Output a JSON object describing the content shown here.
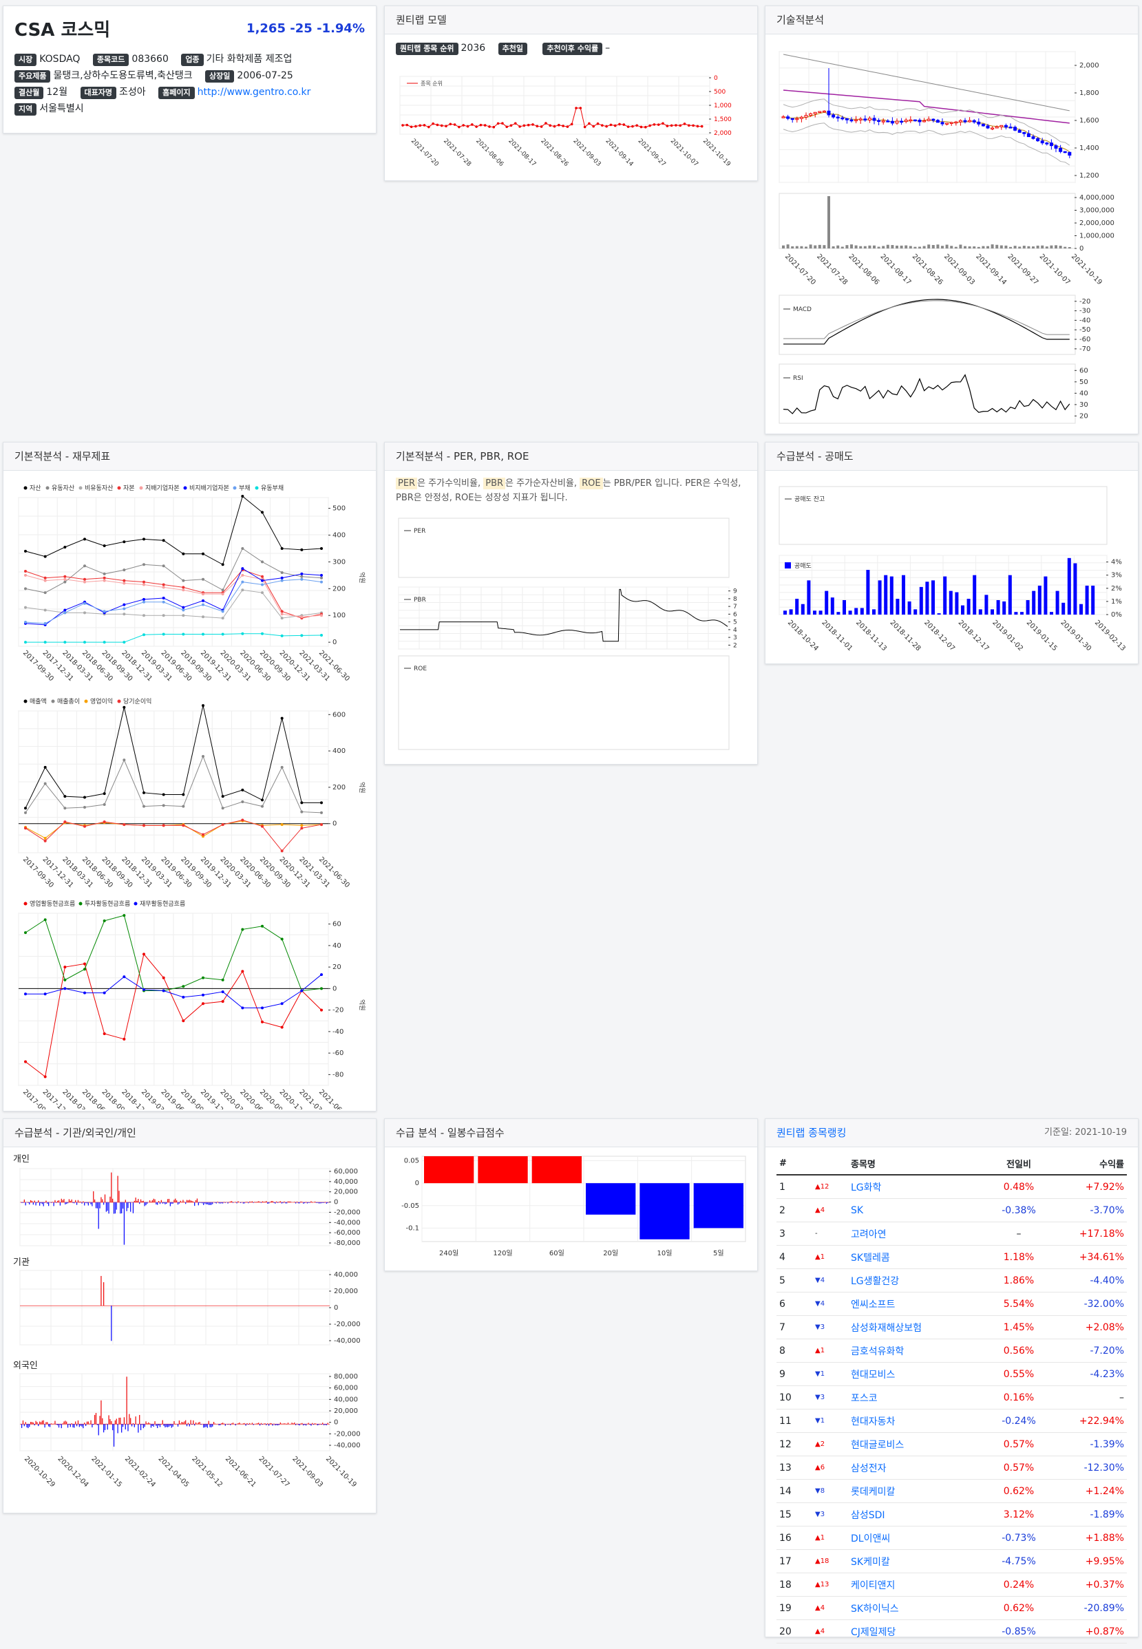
{
  "stock": {
    "name": "CSA 코스믹",
    "price": "1,265",
    "change": "-25",
    "change_pct": "-1.94%",
    "market_label": "시장",
    "market": "KOSDAQ",
    "code_label": "종목코드",
    "code": "083660",
    "industry_label": "업종",
    "industry": "기타 화학제품 제조업",
    "products_label": "주요제품",
    "products": "물탱크,상하수도용도류벽,축산탱크",
    "listing_label": "상장일",
    "listing": "2006-07-25",
    "settle_label": "결산월",
    "settle": "12월",
    "ceo_label": "대표자명",
    "ceo": "조성아",
    "homepage_label": "홈페이지",
    "homepage": "http://www.gentro.co.kr",
    "region_label": "지역",
    "region": "서울특별시"
  },
  "quant": {
    "title": "퀀티랩 모델",
    "rank_label": "퀀티랩 종목 순위",
    "rank": "2036",
    "rec_date_label": "추천일",
    "rec_date": "",
    "rec_return_label": "추천이후 수익률",
    "rec_return": "–",
    "legend": "종목 순위",
    "y_ticks": [
      "0",
      "500",
      "1,000",
      "1,500",
      "2,000"
    ],
    "x_ticks": [
      "2021-07-20",
      "2021-07-28",
      "2021-08-06",
      "2021-08-17",
      "2021-08-26",
      "2021-09-03",
      "2021-09-14",
      "2021-09-27",
      "2021-10-07",
      "2021-10-19"
    ]
  },
  "tech": {
    "title": "기술적분석",
    "price_ticks": [
      "2,000",
      "1,800",
      "1,600",
      "1,400",
      "1,200"
    ],
    "vol_ticks": [
      "4,000,000",
      "3,000,000",
      "2,000,000",
      "1,000,000",
      "0"
    ],
    "x_ticks": [
      "2021-07-20",
      "2021-07-28",
      "2021-08-06",
      "2021-08-17",
      "2021-08-26",
      "2021-09-03",
      "2021-09-14",
      "2021-09-27",
      "2021-10-07",
      "2021-10-19"
    ],
    "macd_label": "MACD",
    "macd_ticks": [
      "-20",
      "-30",
      "-40",
      "-50",
      "-60",
      "-70"
    ],
    "rsi_label": "RSI",
    "rsi_ticks": [
      "60",
      "50",
      "40",
      "30",
      "20"
    ]
  },
  "fin": {
    "title": "기본적분석 - 재무제표",
    "unit": "억원",
    "x_ticks": [
      "2017-09-30",
      "2017-12-31",
      "2018-03-31",
      "2018-06-30",
      "2018-09-30",
      "2018-12-31",
      "2019-03-31",
      "2019-06-30",
      "2019-09-30",
      "2019-12-31",
      "2020-03-31",
      "2020-06-30",
      "2020-09-30",
      "2020-12-31",
      "2021-03-31",
      "2021-06-30"
    ],
    "bs_legend": [
      "자산",
      "유동자산",
      "비유동자산",
      "자본",
      "지배기업자본",
      "비지배기업자본",
      "부채",
      "유동부채"
    ],
    "bs_ticks": [
      "500",
      "400",
      "300",
      "200",
      "100",
      "0"
    ],
    "is_legend": [
      "매출액",
      "매출총이",
      "영업이익",
      "당기순이익"
    ],
    "is_ticks": [
      "600",
      "400",
      "200",
      "0"
    ],
    "cf_legend": [
      "영업활동현금흐름",
      "투자활동현금흐름",
      "재무활동현금흐름"
    ],
    "cf_ticks": [
      "60",
      "40",
      "20",
      "0",
      "-20",
      "-40",
      "-60",
      "-80"
    ]
  },
  "valuation": {
    "title": "기본적분석 - PER, PBR, ROE",
    "per": "PER",
    "pbr": "PBR",
    "roe": "ROE",
    "d1": "은 주가수익비율,",
    "d2": "은 주가순자산비율,",
    "d3": "는 PBR/PER 입니다. PER은 수익성, PBR은 안정성, ROE는 성장성 지표가 됩니다.",
    "pbr_ticks": [
      "9",
      "8",
      "7",
      "6",
      "5",
      "4",
      "3",
      "2"
    ]
  },
  "short": {
    "title": "수급분석 - 공매도",
    "legend_balance": "공매도 잔고",
    "legend_short": "공매도",
    "y_ticks": [
      "4%",
      "3%",
      "2%",
      "1%",
      "0%"
    ],
    "x_ticks": [
      "2018-10-24",
      "2018-11-01",
      "2018-11-13",
      "2018-11-28",
      "2018-12-07",
      "2018-12-17",
      "2019-01-02",
      "2019-01-15",
      "2019-01-30",
      "2019-02-13"
    ]
  },
  "investor": {
    "title": "수급분석 - 기관/외국인/개인",
    "individual": "개인",
    "institution": "기관",
    "foreign": "외국인",
    "ind_ticks": [
      "60,000",
      "40,000",
      "20,000",
      "0",
      "-20,000",
      "-40,000",
      "-60,000",
      "-80,000"
    ],
    "inst_ticks": [
      "40,000",
      "20,000",
      "0",
      "-20,000",
      "-40,000"
    ],
    "for_ticks": [
      "80,000",
      "60,000",
      "40,000",
      "20,000",
      "0",
      "-20,000",
      "-40,000"
    ],
    "x_ticks": [
      "2020-10-29",
      "2020-12-04",
      "2021-01-15",
      "2021-02-24",
      "2021-04-05",
      "2021-05-12",
      "2021-06-21",
      "2021-07-27",
      "2021-09-03",
      "2021-10-19"
    ]
  },
  "supply": {
    "title": "수급 분석 - 일봉수급점수",
    "y_ticks": [
      "0.05",
      "0",
      "-0.05",
      "-0.1"
    ],
    "colors": {
      "pos": "#ff0000",
      "neg": "#0000ff"
    }
  },
  "chart_data": [
    {
      "type": "bar",
      "title": "수급 분석 - 일봉수급점수",
      "categories": [
        "240일",
        "120일",
        "60일",
        "20일",
        "10일",
        "5일"
      ],
      "values": [
        0.06,
        0.06,
        0.06,
        -0.07,
        -0.125,
        -0.1
      ],
      "ylim": [
        -0.13,
        0.06
      ]
    }
  ],
  "ranking": {
    "title": "퀀티랩 종목랭킹",
    "date": "기준일: 2021-10-19",
    "headers": [
      "#",
      "종목명",
      "전일비",
      "수익률"
    ],
    "rows": [
      {
        "no": "1",
        "mv": "▲12",
        "dir": "up",
        "name": "LG화학",
        "chg": "0.48%",
        "ret": "+7.92%"
      },
      {
        "no": "2",
        "mv": "▲4",
        "dir": "up",
        "name": "SK",
        "chg": "-0.38%",
        "ret": "-3.70%"
      },
      {
        "no": "3",
        "mv": "-",
        "dir": "none",
        "name": "고려아연",
        "chg": "–",
        "ret": "+17.18%"
      },
      {
        "no": "4",
        "mv": "▲1",
        "dir": "up",
        "name": "SK텔레콤",
        "chg": "1.18%",
        "ret": "+34.61%"
      },
      {
        "no": "5",
        "mv": "▼4",
        "dir": "dn",
        "name": "LG생활건강",
        "chg": "1.86%",
        "ret": "-4.40%"
      },
      {
        "no": "6",
        "mv": "▼4",
        "dir": "dn",
        "name": "엔씨소프트",
        "chg": "5.54%",
        "ret": "-32.00%"
      },
      {
        "no": "7",
        "mv": "▼3",
        "dir": "dn",
        "name": "삼성화재해상보험",
        "chg": "1.45%",
        "ret": "+2.08%"
      },
      {
        "no": "8",
        "mv": "▲1",
        "dir": "up",
        "name": "금호석유화학",
        "chg": "0.56%",
        "ret": "-7.20%"
      },
      {
        "no": "9",
        "mv": "▼1",
        "dir": "dn",
        "name": "현대모비스",
        "chg": "0.55%",
        "ret": "-4.23%"
      },
      {
        "no": "10",
        "mv": "▼3",
        "dir": "dn",
        "name": "포스코",
        "chg": "0.16%",
        "ret": "–"
      },
      {
        "no": "11",
        "mv": "▼1",
        "dir": "dn",
        "name": "현대자동차",
        "chg": "-0.24%",
        "ret": "+22.94%"
      },
      {
        "no": "12",
        "mv": "▲2",
        "dir": "up",
        "name": "현대글로비스",
        "chg": "0.57%",
        "ret": "-1.39%"
      },
      {
        "no": "13",
        "mv": "▲6",
        "dir": "up",
        "name": "삼성전자",
        "chg": "0.57%",
        "ret": "-12.30%"
      },
      {
        "no": "14",
        "mv": "▼8",
        "dir": "dn",
        "name": "롯데케미칼",
        "chg": "0.62%",
        "ret": "+1.24%"
      },
      {
        "no": "15",
        "mv": "▼3",
        "dir": "dn",
        "name": "삼성SDI",
        "chg": "3.12%",
        "ret": "-1.89%"
      },
      {
        "no": "16",
        "mv": "▲1",
        "dir": "up",
        "name": "DL이앤씨",
        "chg": "-0.73%",
        "ret": "+1.88%"
      },
      {
        "no": "17",
        "mv": "▲18",
        "dir": "up",
        "name": "SK케미칼",
        "chg": "-4.75%",
        "ret": "+9.95%"
      },
      {
        "no": "18",
        "mv": "▲13",
        "dir": "up",
        "name": "케이티앤지",
        "chg": "0.24%",
        "ret": "+0.37%"
      },
      {
        "no": "19",
        "mv": "▲4",
        "dir": "up",
        "name": "SK하이닉스",
        "chg": "0.62%",
        "ret": "-20.89%"
      },
      {
        "no": "20",
        "mv": "▲4",
        "dir": "up",
        "name": "CJ제일제당",
        "chg": "-0.85%",
        "ret": "+0.87%"
      }
    ]
  }
}
